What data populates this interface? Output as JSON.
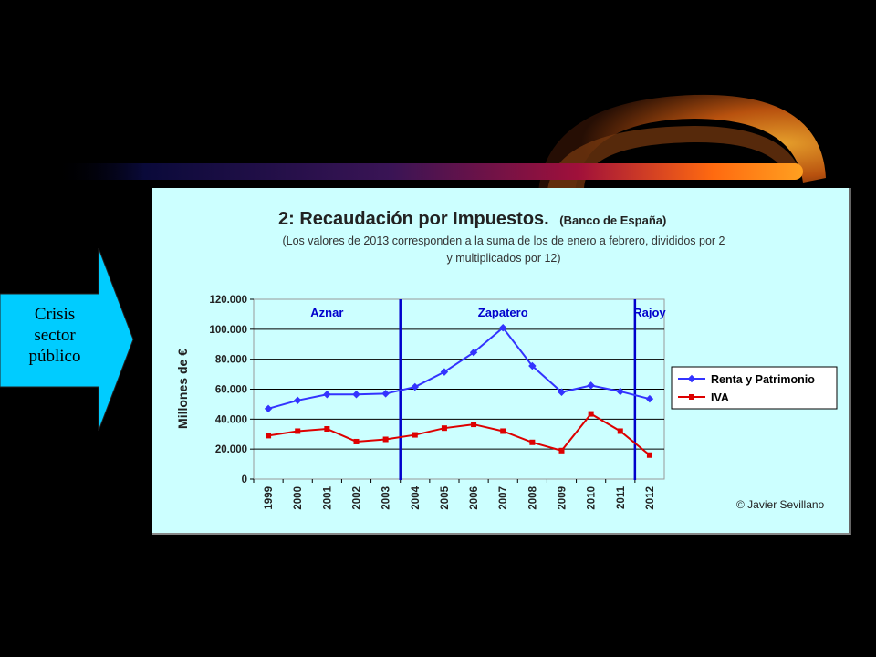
{
  "callout": {
    "lines": [
      "Crisis",
      "sector",
      "público"
    ]
  },
  "chart_data": {
    "type": "line",
    "title": "2: Recaudación por Impuestos.",
    "title_source": "(Banco de España)",
    "subtitle_lines": [
      "(Los valores de 2013 corresponden a la suma de los de enero a febrero, divididos por 2",
      "y multiplicados por 12)"
    ],
    "ylabel": "Millones de €",
    "xlabel": "",
    "categories": [
      "1999",
      "2000",
      "2001",
      "2002",
      "2003",
      "2004",
      "2005",
      "2006",
      "2007",
      "2008",
      "2009",
      "2010",
      "2011",
      "2012"
    ],
    "ylim": [
      0,
      120000
    ],
    "y_ticks": [
      0,
      20000,
      40000,
      60000,
      80000,
      100000,
      120000
    ],
    "y_tick_labels": [
      "0",
      "20.000",
      "40.000",
      "60.000",
      "80.000",
      "100.000",
      "120.000"
    ],
    "grid": true,
    "series": [
      {
        "name": "Renta y Patrimonio",
        "color": "#3333ff",
        "marker": "diamond",
        "values": [
          47000,
          52500,
          56500,
          56500,
          57000,
          61500,
          71500,
          84500,
          101000,
          75500,
          58000,
          62500,
          58500,
          53500
        ]
      },
      {
        "name": "IVA",
        "color": "#dd0000",
        "marker": "square",
        "values": [
          29000,
          32000,
          33500,
          25000,
          26500,
          29500,
          34000,
          36500,
          32000,
          24500,
          19000,
          43500,
          32000,
          16000
        ]
      }
    ],
    "period_dividers": [
      {
        "between": [
          "2003",
          "2004"
        ]
      },
      {
        "between": [
          "2011",
          "2012"
        ]
      }
    ],
    "annotations": [
      {
        "text": "Aznar",
        "category": "2001"
      },
      {
        "text": "Zapatero",
        "category": "2007"
      },
      {
        "text": "Rajoy",
        "category": "2012"
      }
    ],
    "legend_position": "right",
    "credit": "© Javier Sevillano"
  }
}
